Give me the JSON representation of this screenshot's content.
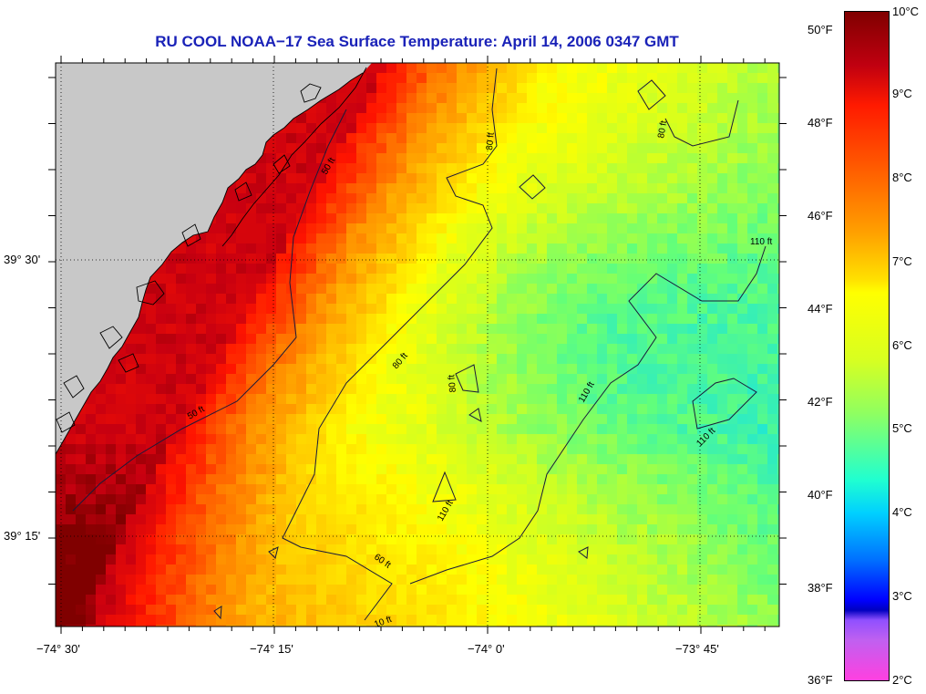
{
  "title": "RU COOL  NOAA−17  Sea Surface Temperature:  April 14, 2006 0347 GMT",
  "lon_labels": [
    "−74° 30'",
    "−74° 15'",
    "−74° 0'",
    "−73° 45'"
  ],
  "lat_labels": [
    "39° 30'",
    "39° 15'"
  ],
  "contour_labels": [
    "50 ft",
    "50 ft",
    "80 ft",
    "80 ft",
    "80 ft",
    "80 ft",
    "110 ft",
    "110 ft",
    "110 ft",
    "110 ft",
    "60 ft",
    "10 ft"
  ],
  "colorbar": {
    "fahrenheit": [
      "50°F",
      "48°F",
      "46°F",
      "44°F",
      "42°F",
      "40°F",
      "38°F",
      "36°F"
    ],
    "celsius": [
      "10°C",
      "9°C",
      "8°C",
      "7°C",
      "6°C",
      "5°C",
      "4°C",
      "3°C",
      "2°C"
    ]
  },
  "colors": {
    "land": "#c8c8c8",
    "title": "#1a22b8"
  }
}
